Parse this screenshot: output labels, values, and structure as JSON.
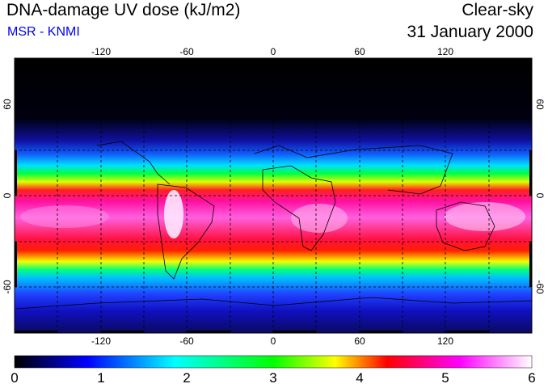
{
  "header": {
    "title": "DNA-damage UV dose (kJ/m2)",
    "credit": "MSR - KNMI",
    "condition": "Clear-sky",
    "date": "31 January 2000"
  },
  "map": {
    "projection": "equirectangular",
    "lon_range": [
      -180,
      180
    ],
    "lat_range": [
      -90,
      90
    ],
    "lon_ticks": [
      "-120",
      "-60",
      "0",
      "60",
      "120"
    ],
    "lat_ticks": [
      "60",
      "0",
      "-60"
    ],
    "grid_spacing_deg": 30
  },
  "colorbar": {
    "range": [
      0,
      6
    ],
    "labels": [
      "0",
      "1",
      "2",
      "3",
      "4",
      "5",
      "6"
    ],
    "colors": [
      "#000000",
      "#0000ff",
      "#00ffff",
      "#00ff00",
      "#ffff00",
      "#ff0000",
      "#ff00ff",
      "#ffffff"
    ]
  }
}
